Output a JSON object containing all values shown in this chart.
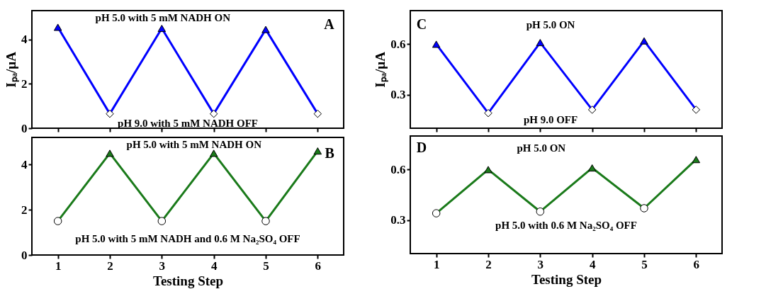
{
  "chart_data": [
    {
      "type": "line",
      "ylabel": "Iₚₐ/μA",
      "x": [
        1,
        2,
        3,
        4,
        5,
        6
      ],
      "xlim": [
        0.5,
        6.5
      ],
      "xticks": [
        1,
        2,
        3,
        4,
        5,
        6
      ],
      "ylim": [
        0,
        5.3
      ],
      "yticks": [
        0,
        2,
        4
      ],
      "tick_labels": "y",
      "annotations": [
        "A",
        "pH 5.0 with 5 mM NADH ON",
        "pH 9.0 with 5 mM NADH OFF"
      ],
      "series": [
        {
          "type": "line",
          "color": "#0000ff",
          "marker": "none",
          "values": [
            4.55,
            0.65,
            4.5,
            0.65,
            4.45,
            0.65
          ]
        },
        {
          "type": "scatter",
          "color": "#0000ff",
          "marker": "triangle",
          "x": [
            1,
            3,
            5
          ],
          "values": [
            4.55,
            4.5,
            4.45
          ]
        },
        {
          "type": "scatter",
          "color": "#ffffff",
          "marker": "diamond",
          "x": [
            2,
            4,
            6
          ],
          "values": [
            0.65,
            0.65,
            0.65
          ]
        }
      ]
    },
    {
      "type": "line",
      "xlabel": "Testing Step",
      "x": [
        1,
        2,
        3,
        4,
        5,
        6
      ],
      "xlim": [
        0.5,
        6.5
      ],
      "xticks": [
        1,
        2,
        3,
        4,
        5,
        6
      ],
      "ylim": [
        0,
        5.2
      ],
      "yticks": [
        0,
        2,
        4
      ],
      "annotations": [
        "B",
        "pH 5.0 with 5 mM NADH ON",
        "pH 5.0 with 5 mM NADH and 0.6 M Na₂SO₄ OFF"
      ],
      "series": [
        {
          "type": "line",
          "color": "#1a7a1a",
          "marker": "none",
          "values": [
            1.5,
            4.5,
            1.5,
            4.5,
            1.5,
            4.6
          ]
        },
        {
          "type": "scatter",
          "color": "#1a7a1a",
          "marker": "triangle",
          "x": [
            2,
            4,
            6
          ],
          "values": [
            4.5,
            4.5,
            4.6
          ]
        },
        {
          "type": "scatter",
          "color": "#ffffff",
          "marker": "circle",
          "x": [
            1,
            3,
            5
          ],
          "values": [
            1.5,
            1.5,
            1.5
          ]
        }
      ]
    },
    {
      "type": "line",
      "ylabel": "Iₚₐ/μA",
      "x": [
        1,
        2,
        3,
        4,
        5,
        6
      ],
      "xlim": [
        0.5,
        6.5
      ],
      "xticks": [
        1,
        2,
        3,
        4,
        5,
        6
      ],
      "ylim": [
        0.1,
        0.8
      ],
      "yticks": [
        0.3,
        0.6
      ],
      "tick_labels": "y",
      "annotations": [
        "C",
        "pH 5.0 ON",
        "pH 9.0 OFF"
      ],
      "series": [
        {
          "type": "line",
          "color": "#0000ff",
          "marker": "none",
          "values": [
            0.6,
            0.19,
            0.61,
            0.21,
            0.62,
            0.21
          ]
        },
        {
          "type": "scatter",
          "color": "#0000ff",
          "marker": "triangle",
          "x": [
            1,
            3,
            5
          ],
          "values": [
            0.6,
            0.61,
            0.62
          ]
        },
        {
          "type": "scatter",
          "color": "#ffffff",
          "marker": "diamond",
          "x": [
            2,
            4,
            6
          ],
          "values": [
            0.19,
            0.21,
            0.21
          ]
        }
      ]
    },
    {
      "type": "line",
      "xlabel": "Testing Step",
      "x": [
        1,
        2,
        3,
        4,
        5,
        6
      ],
      "xlim": [
        0.5,
        6.5
      ],
      "xticks": [
        1,
        2,
        3,
        4,
        5,
        6
      ],
      "ylim": [
        0.1,
        0.8
      ],
      "yticks": [
        0.3,
        0.6
      ],
      "annotations": [
        "D",
        "pH 5.0 ON",
        "pH 5.0 with 0.6 M Na₂SO₄ OFF"
      ],
      "series": [
        {
          "type": "line",
          "color": "#1a7a1a",
          "marker": "none",
          "values": [
            0.34,
            0.6,
            0.35,
            0.61,
            0.37,
            0.66
          ]
        },
        {
          "type": "scatter",
          "color": "#1a7a1a",
          "marker": "triangle",
          "x": [
            2,
            4,
            6
          ],
          "values": [
            0.6,
            0.61,
            0.66
          ]
        },
        {
          "type": "scatter",
          "color": "#ffffff",
          "marker": "circle",
          "x": [
            1,
            3,
            5
          ],
          "values": [
            0.34,
            0.35,
            0.37
          ]
        }
      ]
    }
  ]
}
